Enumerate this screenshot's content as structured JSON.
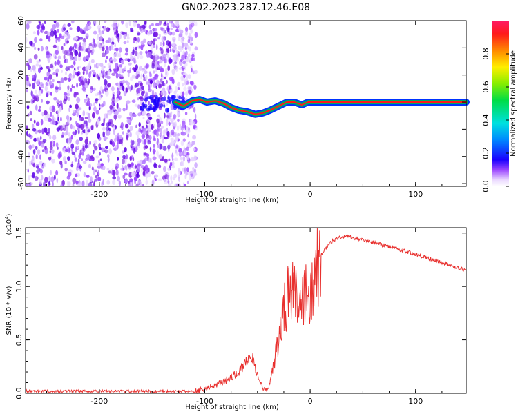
{
  "title": "GN02.2023.287.12.46.E08",
  "colors": {
    "snr_line": "#e8302e",
    "axis": "#000000",
    "ridge_core": "#ff1a1a",
    "ridge_outer": "#00aa66",
    "noise": "#7a1fe0"
  },
  "chart_data": [
    {
      "type": "heatmap",
      "title": "",
      "xlabel": "Height of straight line (km)",
      "ylabel": "Frequency (Hz)",
      "xlim": [
        -270,
        148
      ],
      "ylim": [
        -62,
        60
      ],
      "x_ticks": [
        -200,
        -100,
        0,
        100
      ],
      "y_ticks": [
        -60,
        -40,
        -20,
        0,
        20,
        40,
        60
      ],
      "grid": false,
      "noise_region": {
        "x_start": -270,
        "x_end": -108,
        "f_range": [
          -62,
          60
        ]
      },
      "ridge": {
        "x": [
          -128,
          -120,
          -112,
          -105,
          -98,
          -90,
          -82,
          -75,
          -68,
          -60,
          -52,
          -45,
          -38,
          -30,
          -22,
          -15,
          -8,
          -2,
          5,
          50,
          100,
          148
        ],
        "f": [
          0,
          -3,
          1,
          2,
          0,
          1,
          -1,
          -4,
          -6,
          -7,
          -9,
          -8,
          -6,
          -3,
          0,
          0,
          -2,
          0,
          0,
          0,
          0,
          0
        ]
      },
      "colorbar": {
        "label": "Normalized spectral amplitude",
        "range": [
          0,
          1
        ],
        "ticks": [
          0.0,
          0.2,
          0.4,
          0.6,
          0.8
        ],
        "colormap": "rainbow"
      }
    },
    {
      "type": "line",
      "title": "",
      "xlabel": "Height of straight line (km)",
      "ylabel": "SNR (10 * v/v)",
      "y_multiplier": "(x10",
      "y_multiplier_exp": "4",
      "xlim": [
        -270,
        148
      ],
      "ylim": [
        0,
        1.55
      ],
      "x_ticks": [
        -200,
        -100,
        0,
        100
      ],
      "y_ticks": [
        0.0,
        0.5,
        1.0,
        1.5
      ],
      "grid": false,
      "series": [
        {
          "x": [
            -270,
            -200,
            -150,
            -110,
            -100,
            -90,
            -80,
            -70,
            -60,
            -55,
            -50,
            -45,
            -40,
            -35,
            -30,
            -25,
            -20,
            -15,
            -10,
            -5,
            0,
            5,
            10,
            20,
            30,
            40,
            50,
            60,
            80,
            100,
            120,
            148
          ],
          "values": [
            0.02,
            0.02,
            0.02,
            0.02,
            0.04,
            0.08,
            0.12,
            0.18,
            0.3,
            0.35,
            0.15,
            0.05,
            0.03,
            0.25,
            0.55,
            0.8,
            0.95,
            1.05,
            0.95,
            0.9,
            1.0,
            1.15,
            1.3,
            1.42,
            1.47,
            1.46,
            1.44,
            1.41,
            1.36,
            1.3,
            1.24,
            1.15
          ]
        }
      ]
    }
  ]
}
